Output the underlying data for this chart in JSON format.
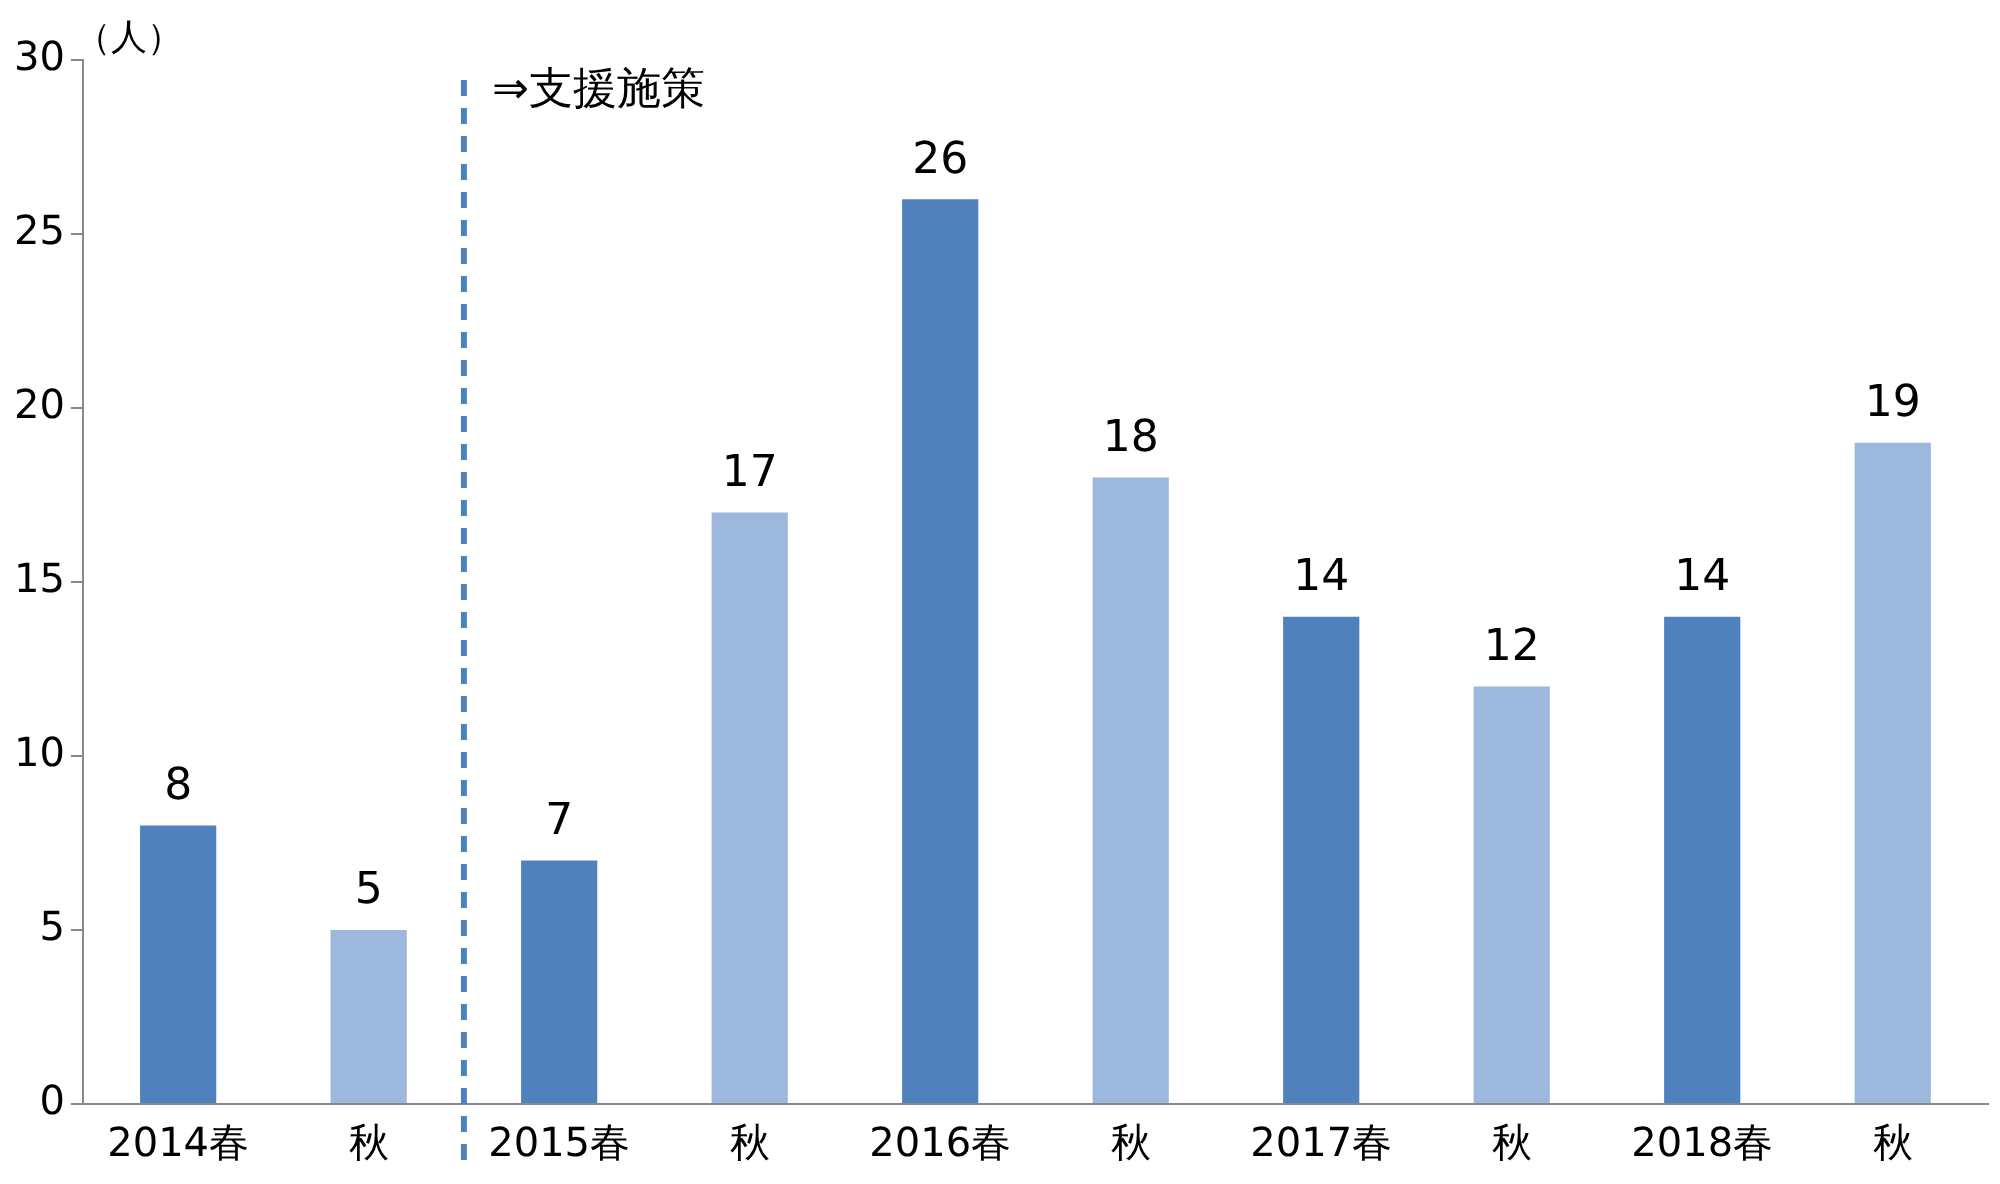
{
  "chart_data": {
    "type": "bar",
    "ylabel": "（人）",
    "categories": [
      "2014春",
      "秋",
      "2015春",
      "秋",
      "2016春",
      "秋",
      "2017春",
      "秋",
      "2018春",
      "秋"
    ],
    "values": [
      8,
      5,
      7,
      17,
      26,
      18,
      14,
      12,
      14,
      19
    ],
    "colors": [
      "#4f81bd",
      "#9cb8dc",
      "#4f81bd",
      "#9cb8dc",
      "#4f81bd",
      "#9cb8dc",
      "#4f81bd",
      "#9cb8dc",
      "#4f81bd",
      "#9cb8dc"
    ],
    "ylim": [
      0,
      30
    ],
    "yticks": [
      0,
      5,
      10,
      15,
      20,
      25,
      30
    ],
    "grid": false,
    "legend": false,
    "data_labels": true,
    "ref_lines": [
      {
        "axis": "x",
        "value": "2015春",
        "label": "⇒支援施策",
        "color": "#4f81bd",
        "line_style": "dashed"
      }
    ]
  }
}
